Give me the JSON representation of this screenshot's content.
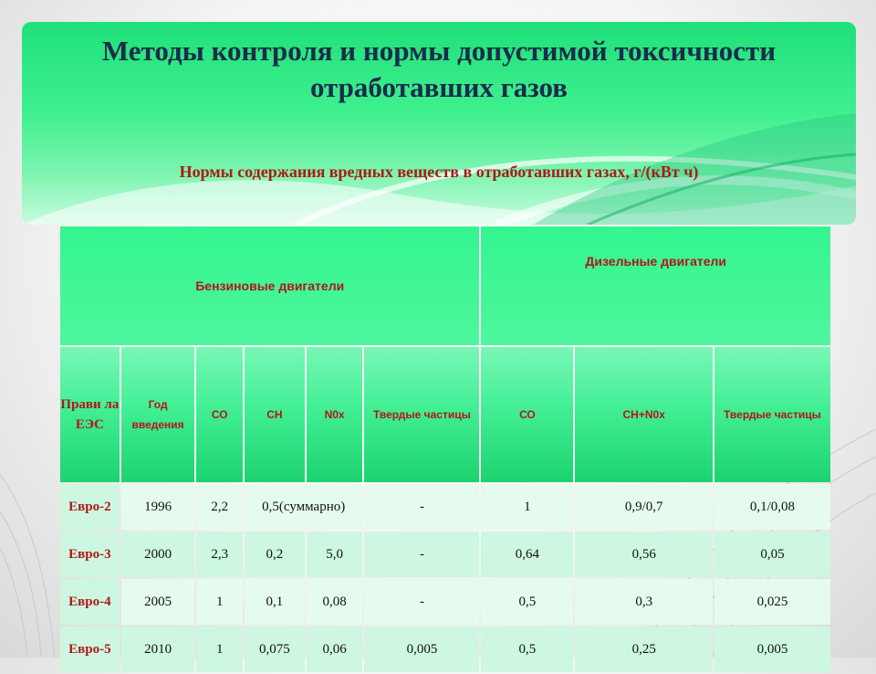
{
  "title": "Методы контроля и нормы допустимой токсичности отработавших газов",
  "subtitle": "Нормы содержания вредных веществ в отработавших газах, г/(кВт ч)",
  "colors": {
    "accent_green": "#33f58e",
    "header_text": "#b01717",
    "title_text": "#1b2c4a"
  },
  "table": {
    "groups": {
      "benzine": "Бензиновые двигатели",
      "diesel": "Дизельные двигатели"
    },
    "headers": {
      "rules": "Прави ла ЕЭС",
      "year": "Год введения",
      "co": "СО",
      "ch": "СН",
      "nox": "N0x",
      "pm": "Твердые частицы",
      "d_co": "СО",
      "d_chnox": "CH+N0x",
      "d_pm": "Твердые частицы"
    },
    "rows": [
      {
        "rule": "Евро-2",
        "year": "1996",
        "co": "2,2",
        "ch_nox_combined": "0,5(суммарно)",
        "pm": "-",
        "d_co": "1",
        "d_chnox": "0,9/0,7",
        "d_pm": "0,1/0,08"
      },
      {
        "rule": "Евро-3",
        "year": "2000",
        "co": "2,3",
        "ch": "0,2",
        "nox": "5,0",
        "pm": "-",
        "d_co": "0,64",
        "d_chnox": "0,56",
        "d_pm": "0,05"
      },
      {
        "rule": "Евро-4",
        "year": "2005",
        "co": "1",
        "ch": "0,1",
        "nox": "0,08",
        "pm": "-",
        "d_co": "0,5",
        "d_chnox": "0,3",
        "d_pm": "0,025"
      },
      {
        "rule": "Евро-5",
        "year": "2010",
        "co": "1",
        "ch": "0,075",
        "nox": "0,06",
        "pm": "0,005",
        "d_co": "0,5",
        "d_chnox": "0,25",
        "d_pm": "0,005"
      }
    ]
  }
}
